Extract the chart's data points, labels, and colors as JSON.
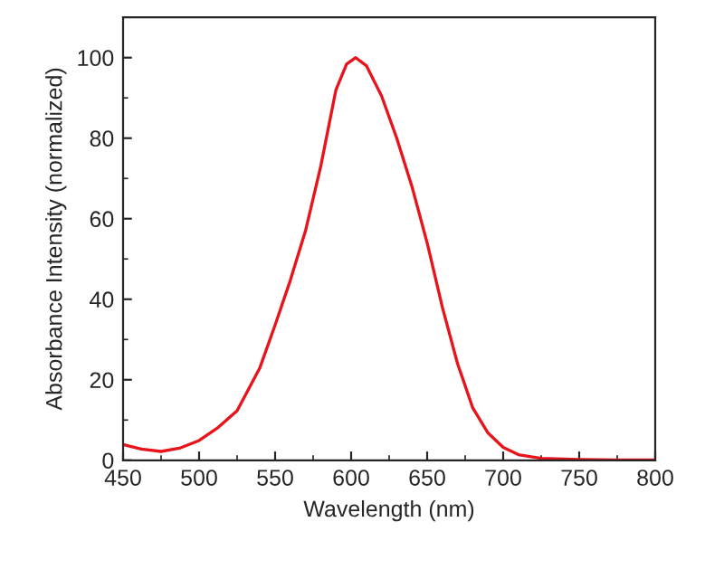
{
  "chart_data": {
    "type": "line",
    "xlabel": "Wavelength (nm)",
    "ylabel": "Absorbance Intensity (normalized)",
    "series": [
      {
        "color": "#e8141c",
        "x": [
          450,
          462,
          475,
          487,
          500,
          512,
          525,
          540,
          550,
          560,
          570,
          580,
          590,
          597,
          603,
          610,
          620,
          630,
          640,
          650,
          660,
          670,
          680,
          690,
          700,
          710,
          725,
          750,
          775,
          800
        ],
        "values": [
          3.9,
          2.8,
          2.2,
          3.0,
          4.9,
          8,
          12.3,
          23,
          33.6,
          44.7,
          57,
          73,
          92,
          98.4,
          100,
          98,
          90.5,
          80,
          68,
          54,
          38,
          24,
          13,
          6.8,
          3.2,
          1.4,
          0.5,
          0.2,
          0.1,
          0.1
        ]
      }
    ],
    "xlim": [
      450,
      800
    ],
    "xticks": [
      450,
      500,
      550,
      600,
      650,
      700,
      750,
      800
    ],
    "ylim": [
      0,
      110
    ],
    "yticks": [
      0,
      20,
      40,
      60,
      80,
      100
    ],
    "grid": false,
    "line_style": "solid"
  }
}
